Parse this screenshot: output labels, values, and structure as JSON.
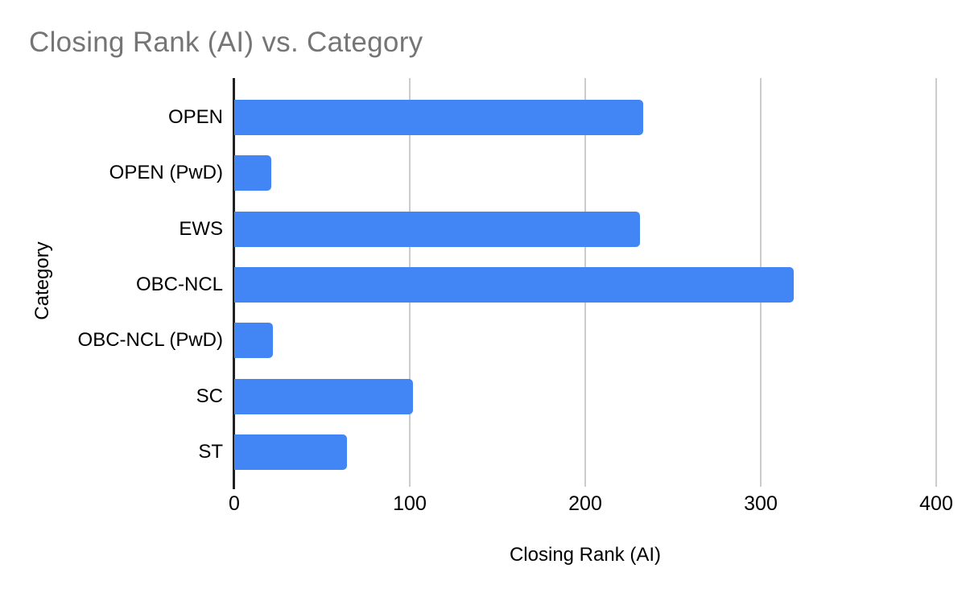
{
  "chart_data": {
    "type": "bar",
    "orientation": "horizontal",
    "title": "Closing Rank (AI) vs. Category",
    "xlabel": "Closing Rank (AI)",
    "ylabel": "Category",
    "categories": [
      "OPEN",
      "OPEN (PwD)",
      "EWS",
      "OBC-NCL",
      "OBC-NCL (PwD)",
      "SC",
      "ST"
    ],
    "values": [
      233,
      21,
      231,
      319,
      22,
      102,
      64
    ],
    "xlim": [
      0,
      400
    ],
    "xticks": [
      0,
      100,
      200,
      300,
      400
    ],
    "grid": true,
    "legend": false,
    "colors": {
      "bar": "#4285f4",
      "gridline": "#cccccc",
      "axis_line": "#212121",
      "title_text": "#757575",
      "label_text": "#000000",
      "background": "#ffffff"
    }
  }
}
